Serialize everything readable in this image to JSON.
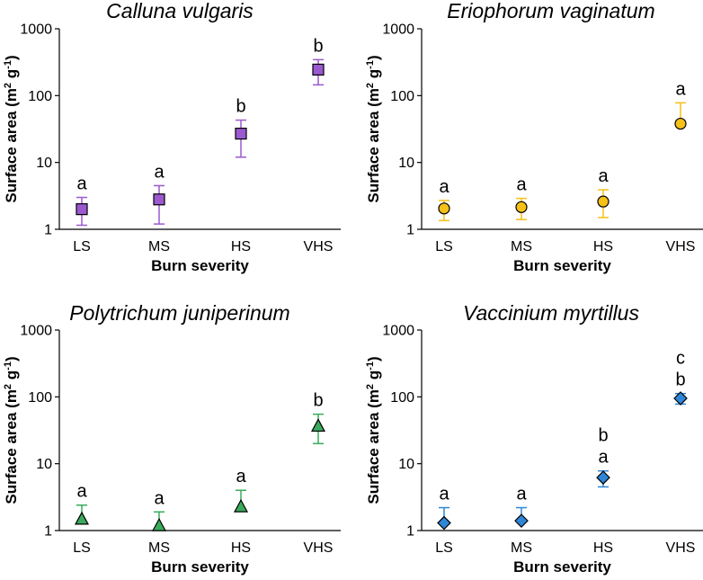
{
  "chart_data": [
    {
      "type": "scatter",
      "title": "Calluna vulgaris",
      "xlabel": "Burn severity",
      "ylabel_main": "Surface area (m",
      "ylabel_sup1": "2",
      "ylabel_mid": " g",
      "ylabel_sup2": "-1",
      "ylabel_end": ")",
      "yscale": "log",
      "ylim": [
        1,
        1000
      ],
      "yticks": [
        "1",
        "10",
        "100",
        "1000"
      ],
      "categories": [
        "LS",
        "MS",
        "HS",
        "VHS"
      ],
      "marker": "square",
      "color": "#9b59d0",
      "points": [
        {
          "x": "LS",
          "y": 2.0,
          "err_low": 1.15,
          "err_high": 3.0,
          "sig": [
            "a"
          ]
        },
        {
          "x": "MS",
          "y": 2.8,
          "err_low": 1.2,
          "err_high": 4.5,
          "sig": [
            "a"
          ]
        },
        {
          "x": "HS",
          "y": 27,
          "err_low": 12,
          "err_high": 43,
          "sig": [
            "b"
          ]
        },
        {
          "x": "VHS",
          "y": 245,
          "err_low": 145,
          "err_high": 345,
          "sig": [
            "b"
          ]
        }
      ]
    },
    {
      "type": "scatter",
      "title": "Eriophorum vaginatum",
      "xlabel": "Burn severity",
      "ylabel_main": "Surface area (m",
      "ylabel_sup1": "2",
      "ylabel_mid": " g",
      "ylabel_sup2": "-1",
      "ylabel_end": ")",
      "yscale": "log",
      "ylim": [
        1,
        1000
      ],
      "yticks": [
        "1",
        "10",
        "100",
        "1000"
      ],
      "categories": [
        "LS",
        "MS",
        "HS",
        "VHS"
      ],
      "marker": "circle",
      "color": "#f5c018",
      "points": [
        {
          "x": "LS",
          "y": 2.05,
          "err_low": 1.35,
          "err_high": 2.7,
          "sig": [
            "a"
          ]
        },
        {
          "x": "MS",
          "y": 2.15,
          "err_low": 1.4,
          "err_high": 2.9,
          "sig": [
            "a"
          ]
        },
        {
          "x": "HS",
          "y": 2.6,
          "err_low": 1.5,
          "err_high": 3.9,
          "sig": [
            "a"
          ]
        },
        {
          "x": "VHS",
          "y": 38,
          "err_low": null,
          "err_high": 78,
          "sig": [
            "a"
          ]
        }
      ]
    },
    {
      "type": "scatter",
      "title": "Polytrichum juniperinum",
      "xlabel": "Burn severity",
      "ylabel_main": "Surface area (m",
      "ylabel_sup1": "2",
      "ylabel_mid": " g",
      "ylabel_sup2": "-1",
      "ylabel_end": ")",
      "yscale": "log",
      "ylim": [
        1,
        1000
      ],
      "yticks": [
        "1",
        "10",
        "100",
        "1000"
      ],
      "categories": [
        "LS",
        "MS",
        "HS",
        "VHS"
      ],
      "marker": "triangle",
      "color": "#3aaa5c",
      "points": [
        {
          "x": "LS",
          "y": 1.5,
          "err_low": null,
          "err_high": 2.4,
          "sig": [
            "a"
          ]
        },
        {
          "x": "MS",
          "y": 1.2,
          "err_low": null,
          "err_high": 1.9,
          "sig": [
            "a"
          ]
        },
        {
          "x": "HS",
          "y": 2.3,
          "err_low": null,
          "err_high": 4.0,
          "sig": [
            "a"
          ]
        },
        {
          "x": "VHS",
          "y": 37,
          "err_low": 20,
          "err_high": 55,
          "sig": [
            "b"
          ]
        }
      ]
    },
    {
      "type": "scatter",
      "title": "Vaccinium myrtillus",
      "xlabel": "Burn severity",
      "ylabel_main": "Surface area (m",
      "ylabel_sup1": "2",
      "ylabel_mid": " g",
      "ylabel_sup2": "-1",
      "ylabel_end": ")",
      "yscale": "log",
      "ylim": [
        1,
        1000
      ],
      "yticks": [
        "1",
        "10",
        "100",
        "1000"
      ],
      "categories": [
        "LS",
        "MS",
        "HS",
        "VHS"
      ],
      "marker": "diamond",
      "color": "#2f86d6",
      "points": [
        {
          "x": "LS",
          "y": 1.3,
          "err_low": null,
          "err_high": 2.2,
          "sig": [
            "a"
          ]
        },
        {
          "x": "MS",
          "y": 1.4,
          "err_low": null,
          "err_high": 2.2,
          "sig": [
            "a"
          ]
        },
        {
          "x": "HS",
          "y": 6.2,
          "err_low": 4.5,
          "err_high": 7.8,
          "sig": [
            "b",
            "a"
          ]
        },
        {
          "x": "VHS",
          "y": 95,
          "err_low": 78,
          "err_high": 112,
          "sig": [
            "c",
            "b"
          ]
        }
      ]
    }
  ]
}
